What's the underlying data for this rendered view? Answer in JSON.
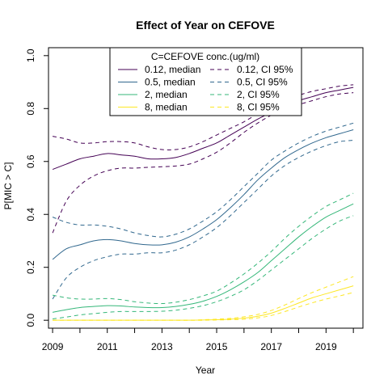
{
  "chart_data": {
    "type": "line",
    "title": "Effect of Year on CEFOVE",
    "xlabel": "Year",
    "ylabel": "P[MIC > C]",
    "xlim": [
      2008.85,
      2020.35
    ],
    "ylim": [
      -0.03,
      1.03
    ],
    "x_ticks": [
      2009,
      2010,
      2011,
      2012,
      2013,
      2014,
      2015,
      2016,
      2017,
      2018,
      2019,
      2020
    ],
    "x_tick_labels": [
      "2009",
      "",
      "2011",
      "",
      "2013",
      "",
      "2015",
      "",
      "2017",
      "",
      "2019",
      ""
    ],
    "y_ticks": [
      0.0,
      0.2,
      0.4,
      0.6,
      0.8,
      1.0
    ],
    "y_tick_labels": [
      "0.0",
      "0.2",
      "0.4",
      "0.6",
      "0.8",
      "1.0"
    ],
    "grid": false,
    "legend": {
      "title": "C=CEFOVE conc.(ug/ml)",
      "placement": "top-center",
      "entries": [
        {
          "label": "0.12, median",
          "color": "#440154",
          "dash": false
        },
        {
          "label": "0.12, CI 95%",
          "color": "#440154",
          "dash": true
        },
        {
          "label": "0.5, median",
          "color": "#31688e",
          "dash": false
        },
        {
          "label": "0.5, CI 95%",
          "color": "#31688e",
          "dash": true
        },
        {
          "label": "2, median",
          "color": "#35b779",
          "dash": false
        },
        {
          "label": "2, CI 95%",
          "color": "#35b779",
          "dash": true
        },
        {
          "label": "8, median",
          "color": "#fde725",
          "dash": false
        },
        {
          "label": "8, CI 95%",
          "color": "#fde725",
          "dash": true
        }
      ]
    },
    "x": [
      2009,
      2009.5,
      2010,
      2010.5,
      2011,
      2011.5,
      2012,
      2012.5,
      2013,
      2013.5,
      2014,
      2014.5,
      2015,
      2015.5,
      2016,
      2016.5,
      2017,
      2017.5,
      2018,
      2018.5,
      2019,
      2019.5,
      2020
    ],
    "series": [
      {
        "color": "#440154",
        "dash": false,
        "values": [
          0.57,
          0.59,
          0.61,
          0.62,
          0.63,
          0.625,
          0.62,
          0.61,
          0.61,
          0.615,
          0.63,
          0.65,
          0.67,
          0.7,
          0.73,
          0.76,
          0.785,
          0.81,
          0.83,
          0.845,
          0.86,
          0.87,
          0.88
        ]
      },
      {
        "color": "#440154",
        "dash": true,
        "values": [
          0.695,
          0.685,
          0.67,
          0.67,
          0.675,
          0.675,
          0.67,
          0.655,
          0.645,
          0.645,
          0.655,
          0.675,
          0.7,
          0.725,
          0.75,
          0.78,
          0.805,
          0.83,
          0.85,
          0.865,
          0.875,
          0.885,
          0.89
        ]
      },
      {
        "color": "#440154",
        "dash": true,
        "values": [
          0.33,
          0.45,
          0.51,
          0.545,
          0.565,
          0.575,
          0.575,
          0.578,
          0.58,
          0.583,
          0.59,
          0.61,
          0.635,
          0.67,
          0.71,
          0.745,
          0.775,
          0.8,
          0.815,
          0.83,
          0.845,
          0.855,
          0.86
        ]
      },
      {
        "color": "#31688e",
        "dash": false,
        "values": [
          0.23,
          0.27,
          0.285,
          0.3,
          0.305,
          0.3,
          0.29,
          0.285,
          0.285,
          0.295,
          0.315,
          0.345,
          0.38,
          0.425,
          0.475,
          0.53,
          0.575,
          0.615,
          0.645,
          0.67,
          0.69,
          0.705,
          0.72
        ]
      },
      {
        "color": "#31688e",
        "dash": true,
        "values": [
          0.39,
          0.37,
          0.36,
          0.36,
          0.355,
          0.345,
          0.33,
          0.32,
          0.315,
          0.325,
          0.345,
          0.375,
          0.41,
          0.455,
          0.505,
          0.555,
          0.605,
          0.64,
          0.67,
          0.695,
          0.715,
          0.73,
          0.745
        ]
      },
      {
        "color": "#31688e",
        "dash": true,
        "values": [
          0.08,
          0.16,
          0.2,
          0.225,
          0.24,
          0.25,
          0.25,
          0.255,
          0.255,
          0.265,
          0.285,
          0.315,
          0.35,
          0.395,
          0.445,
          0.495,
          0.545,
          0.585,
          0.615,
          0.64,
          0.66,
          0.675,
          0.68
        ]
      },
      {
        "color": "#35b779",
        "dash": false,
        "values": [
          0.03,
          0.04,
          0.048,
          0.052,
          0.055,
          0.054,
          0.05,
          0.048,
          0.048,
          0.052,
          0.06,
          0.072,
          0.09,
          0.115,
          0.145,
          0.18,
          0.225,
          0.27,
          0.315,
          0.355,
          0.39,
          0.415,
          0.44
        ]
      },
      {
        "color": "#35b779",
        "dash": true,
        "values": [
          0.095,
          0.085,
          0.08,
          0.08,
          0.082,
          0.078,
          0.07,
          0.065,
          0.063,
          0.068,
          0.078,
          0.092,
          0.11,
          0.14,
          0.175,
          0.215,
          0.26,
          0.31,
          0.355,
          0.395,
          0.43,
          0.455,
          0.48
        ]
      },
      {
        "color": "#35b779",
        "dash": true,
        "values": [
          0.005,
          0.012,
          0.02,
          0.025,
          0.03,
          0.033,
          0.033,
          0.033,
          0.034,
          0.038,
          0.045,
          0.055,
          0.07,
          0.09,
          0.115,
          0.15,
          0.19,
          0.23,
          0.27,
          0.31,
          0.345,
          0.375,
          0.395
        ]
      },
      {
        "color": "#fde725",
        "dash": false,
        "values": [
          0.0,
          0.0,
          0.0,
          0.0,
          0.0,
          0.0,
          0.0,
          0.0,
          0.0,
          0.0,
          0.0,
          0.001,
          0.002,
          0.004,
          0.008,
          0.015,
          0.027,
          0.045,
          0.065,
          0.085,
          0.1,
          0.115,
          0.13
        ]
      },
      {
        "color": "#fde725",
        "dash": true,
        "values": [
          0.0,
          0.0,
          0.0,
          0.0,
          0.0,
          0.0,
          0.0,
          0.0,
          0.0,
          0.0,
          0.0,
          0.002,
          0.004,
          0.007,
          0.013,
          0.022,
          0.037,
          0.058,
          0.082,
          0.105,
          0.125,
          0.145,
          0.165
        ]
      },
      {
        "color": "#fde725",
        "dash": true,
        "values": [
          0.0,
          0.0,
          0.0,
          0.0,
          0.0,
          0.0,
          0.0,
          0.0,
          0.0,
          0.0,
          0.0,
          0.0,
          0.001,
          0.002,
          0.004,
          0.009,
          0.018,
          0.033,
          0.05,
          0.066,
          0.08,
          0.092,
          0.105
        ]
      }
    ]
  }
}
